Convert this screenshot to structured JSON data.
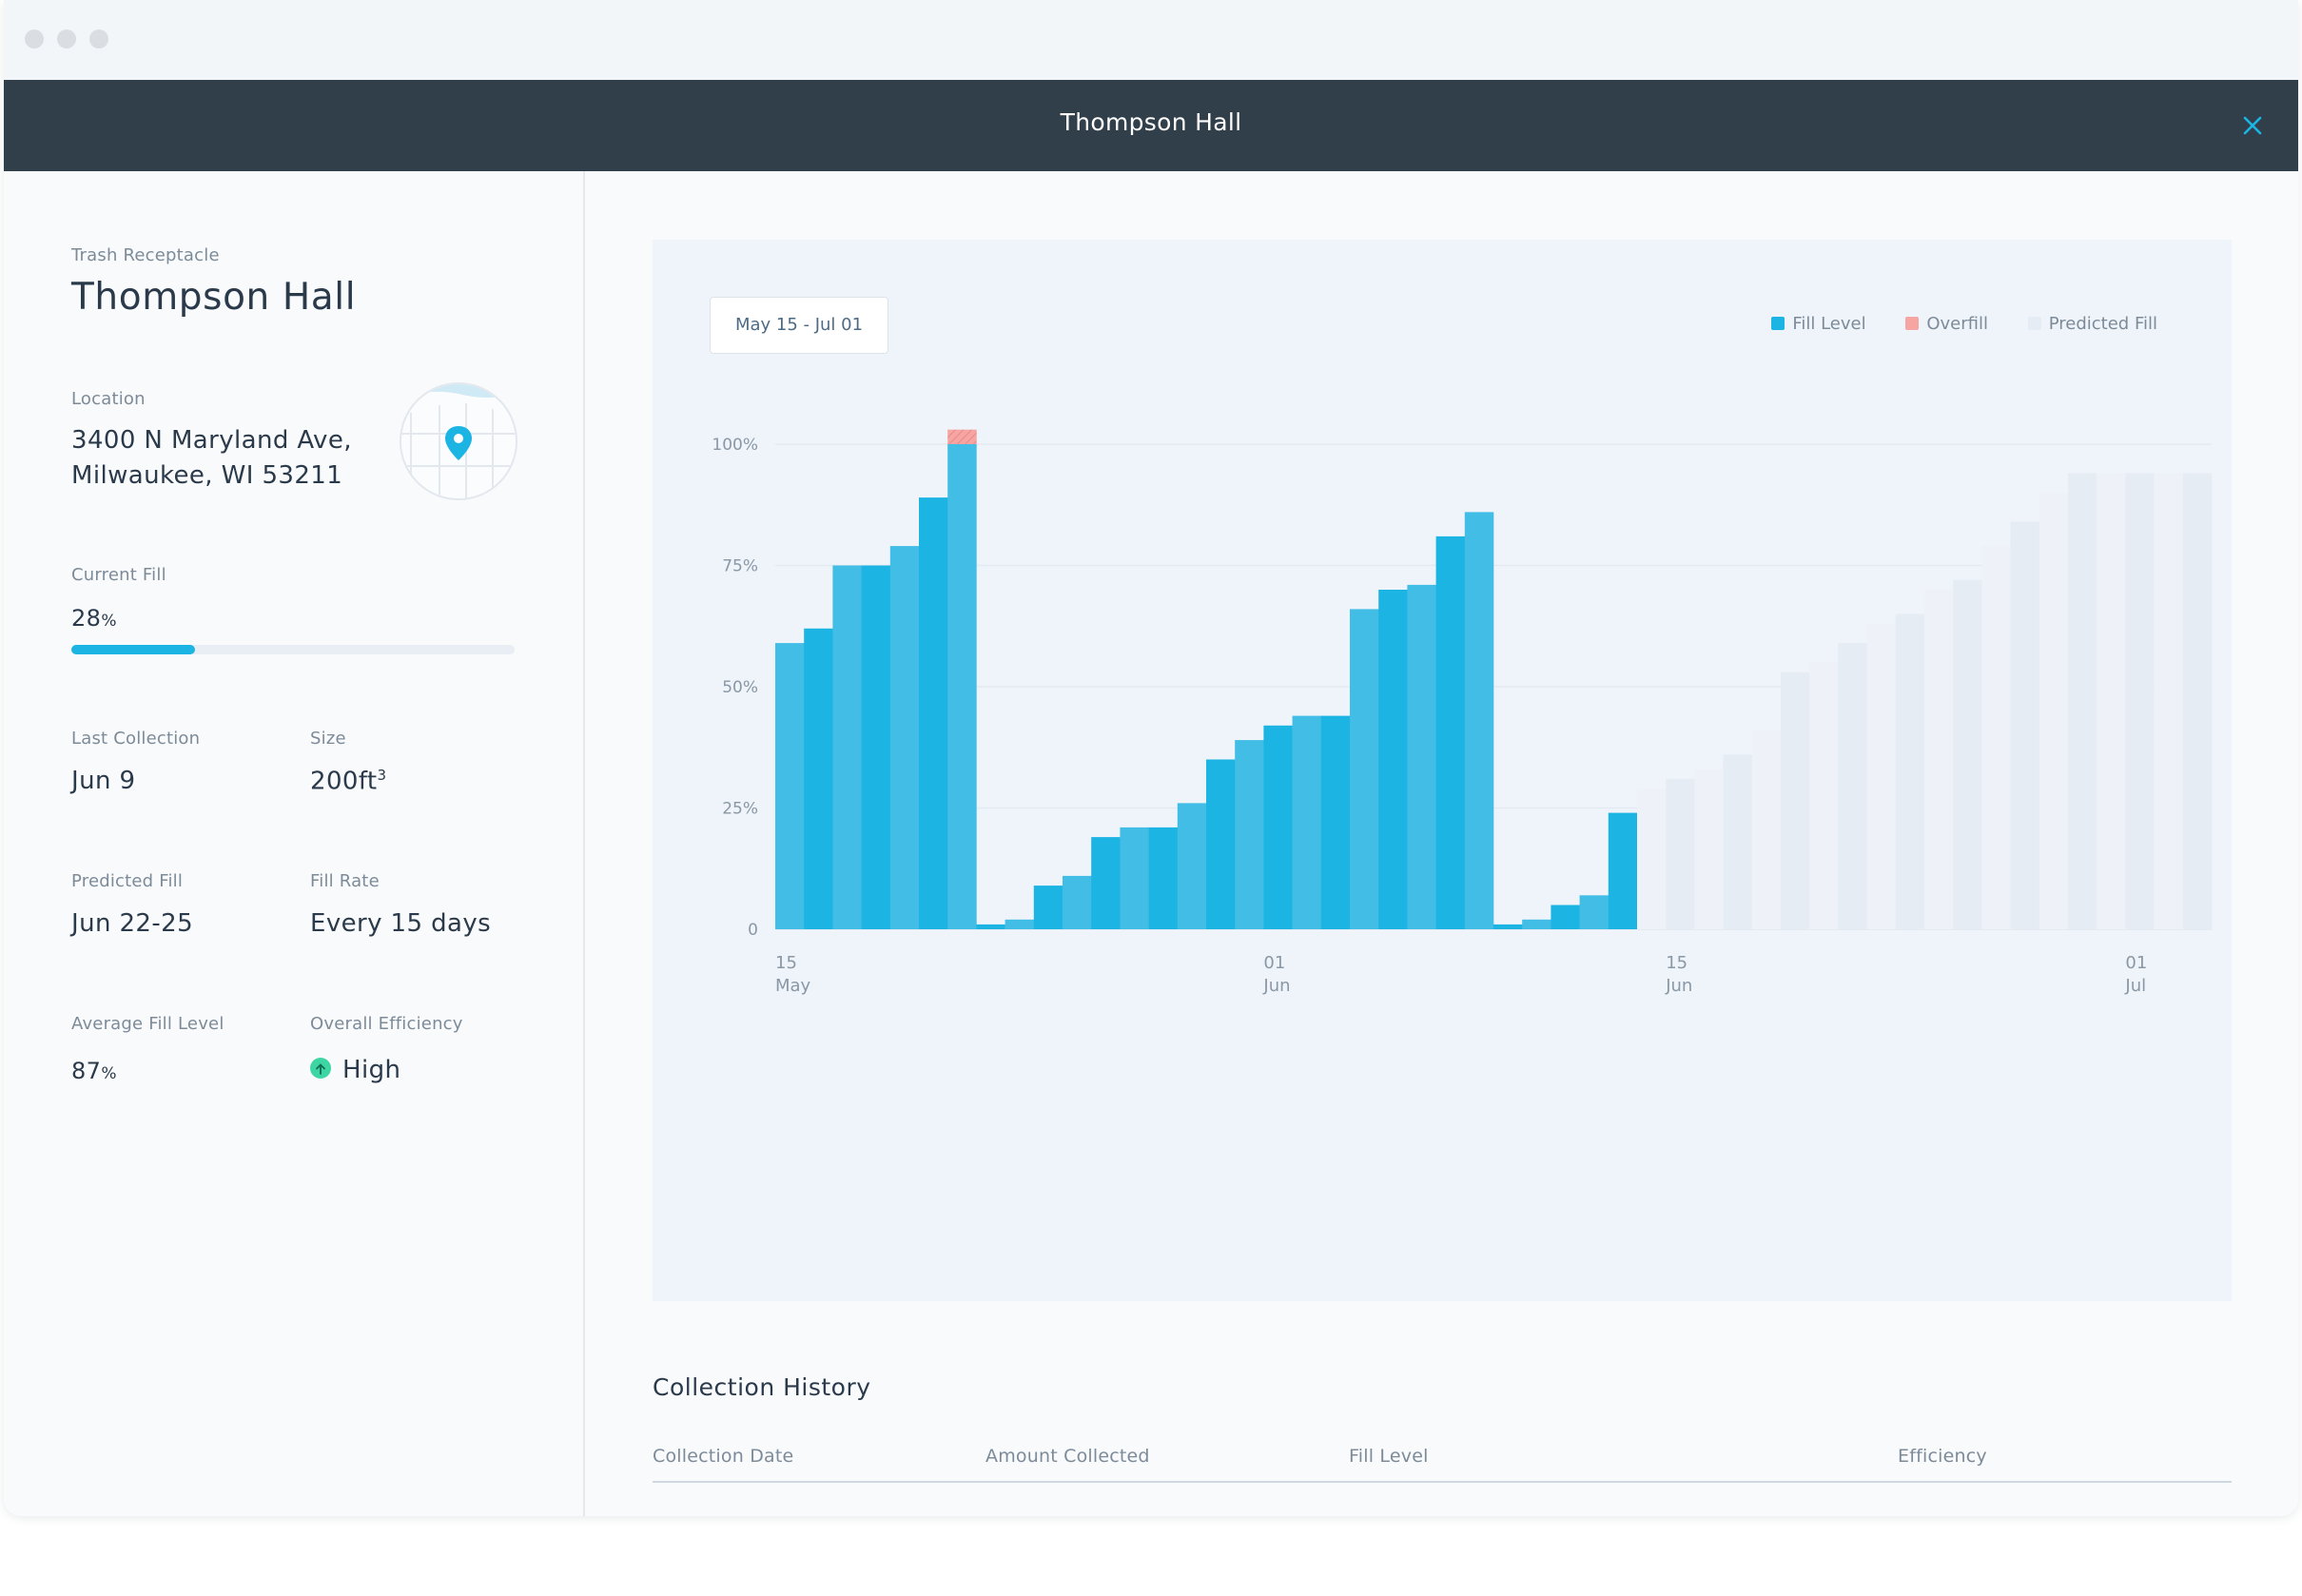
{
  "window": {
    "title": "Thompson Hall"
  },
  "sidebar": {
    "type_label": "Trash Receptacle",
    "name": "Thompson Hall",
    "location_label": "Location",
    "address_line1": "3400 N Maryland Ave,",
    "address_line2": "Milwaukee, WI 53211",
    "current_fill_label": "Current Fill",
    "current_fill_value": "28",
    "current_fill_unit": "%",
    "current_fill_fraction": 0.28,
    "last_collection_label": "Last Collection",
    "last_collection_value": "Jun 9",
    "size_label": "Size",
    "size_value": "200ft",
    "size_sup": "3",
    "predicted_fill_label": "Predicted Fill",
    "predicted_fill_value": "Jun 22-25",
    "fill_rate_label": "Fill Rate",
    "fill_rate_value": "Every 15 days",
    "avg_fill_label": "Average Fill Level",
    "avg_fill_value": "87",
    "avg_fill_unit": "%",
    "efficiency_label": "Overall Efficiency",
    "efficiency_value": "High"
  },
  "chart": {
    "date_range": "May 15 - Jul 01",
    "legend": {
      "fill": "Fill Level",
      "overfill": "Overfill",
      "predicted": "Predicted Fill"
    }
  },
  "colors": {
    "fill_a": "#42bde6",
    "fill_b": "#1cb4e3",
    "overfill": "#f7a5a3",
    "predicted_a": "#eef2f8",
    "predicted_b": "#e6ecf4",
    "accent": "#1cb4e3",
    "header": "#313f4b",
    "efficiency_high": "#3dd6a3"
  },
  "chart_data": {
    "type": "bar",
    "title": "",
    "ylabel": "",
    "xlabel": "",
    "ylim": [
      0,
      100
    ],
    "y_ticks": [
      {
        "value": 0,
        "label": "0"
      },
      {
        "value": 25,
        "label": "25%"
      },
      {
        "value": 50,
        "label": "50%"
      },
      {
        "value": 75,
        "label": "75%"
      },
      {
        "value": 100,
        "label": "100%"
      }
    ],
    "x_ticks": [
      {
        "index": 0,
        "day": "15",
        "month": "May"
      },
      {
        "index": 17,
        "day": "01",
        "month": "Jun"
      },
      {
        "index": 31,
        "day": "15",
        "month": "Jun"
      },
      {
        "index": 47,
        "day": "01",
        "month": "Jul"
      }
    ],
    "series": [
      {
        "name": "Fill Level",
        "values": [
          59,
          62,
          75,
          75,
          79,
          89,
          100,
          1,
          2,
          9,
          11,
          19,
          21,
          21,
          26,
          35,
          39,
          42,
          44,
          44,
          66,
          70,
          71,
          81,
          86,
          1,
          2,
          5,
          7,
          24
        ]
      },
      {
        "name": "Overfill",
        "values": [
          0,
          0,
          0,
          0,
          0,
          0,
          3,
          0,
          0,
          0,
          0,
          0,
          0,
          0,
          0,
          0,
          0,
          0,
          0,
          0,
          0,
          0,
          0,
          0,
          0,
          0,
          0,
          0,
          0,
          0
        ]
      },
      {
        "name": "Predicted Fill",
        "values": [
          29,
          31,
          33,
          36,
          41,
          53,
          55,
          59,
          63,
          65,
          70,
          72,
          79,
          84,
          90,
          94,
          94,
          94,
          94,
          94
        ]
      }
    ]
  },
  "history": {
    "title": "Collection History",
    "columns": [
      "Collection Date",
      "Amount Collected",
      "Fill Level",
      "Efficiency"
    ]
  }
}
